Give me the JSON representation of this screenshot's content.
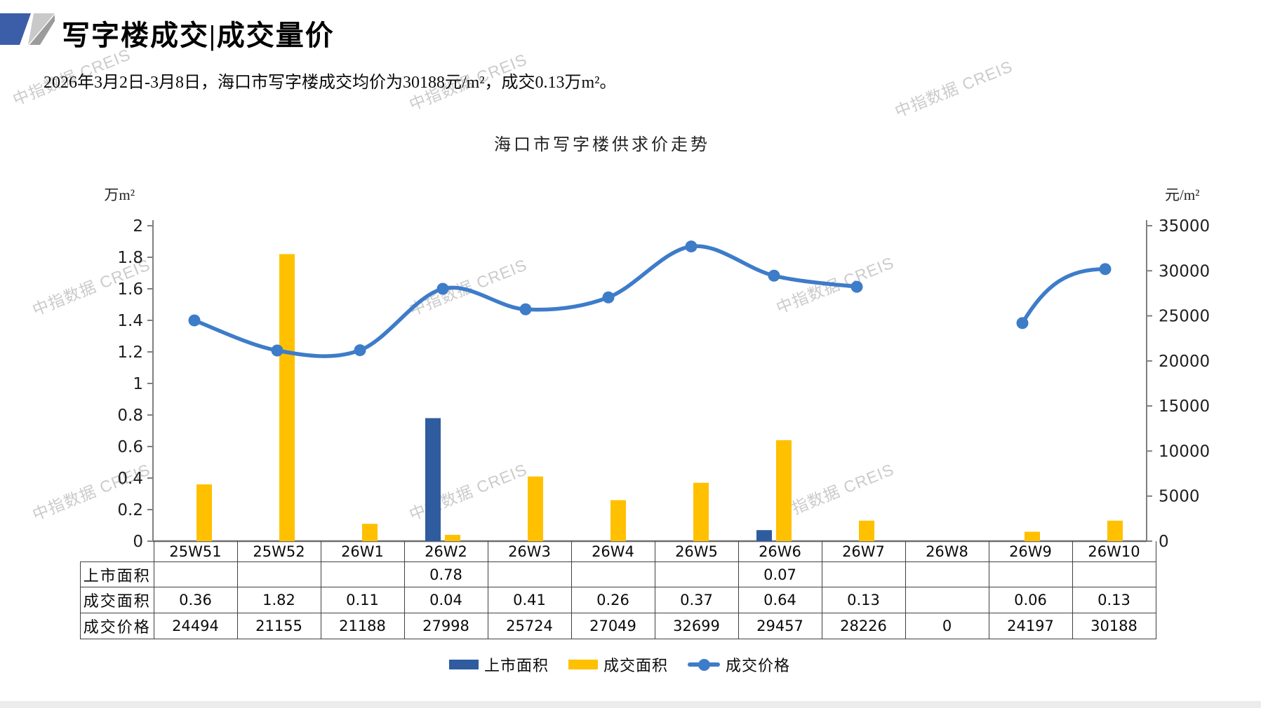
{
  "header": {
    "title": "写字楼成交|成交量价",
    "subtitle": "2026年3月2日-3月8日，海口市写字楼成交均价为30188元/m²，成交0.13万m²。"
  },
  "watermark": {
    "text": "中指数据 CREIS"
  },
  "chart_data": {
    "type": "bar+line",
    "title": "海口市写字楼供求价走势",
    "categories": [
      "25W51",
      "25W52",
      "26W1",
      "26W2",
      "26W3",
      "26W4",
      "26W5",
      "26W6",
      "26W7",
      "26W8",
      "26W9",
      "26W10"
    ],
    "series": [
      {
        "name": "上市面积",
        "type": "bar",
        "yaxis": "left",
        "color": "#2F5B9F",
        "values": [
          null,
          null,
          null,
          0.78,
          null,
          null,
          null,
          0.07,
          null,
          null,
          null,
          null
        ]
      },
      {
        "name": "成交面积",
        "type": "bar",
        "yaxis": "left",
        "color": "#FFC000",
        "values": [
          0.36,
          1.82,
          0.11,
          0.04,
          0.41,
          0.26,
          0.37,
          0.64,
          0.13,
          null,
          0.06,
          0.13
        ]
      },
      {
        "name": "成交价格",
        "type": "line",
        "yaxis": "right",
        "color": "#3D7CC9",
        "gap_at_zero": true,
        "values": [
          24494,
          21155,
          21188,
          27998,
          25724,
          27049,
          32699,
          29457,
          28226,
          0,
          24197,
          30188
        ]
      }
    ],
    "left_axis": {
      "unit": "万m²",
      "min": 0,
      "max": 2,
      "step": 0.2,
      "ticks": [
        "2",
        "1.8",
        "1.6",
        "1.4",
        "1.2",
        "1",
        "0.8",
        "0.6",
        "0.4",
        "0.2",
        "0"
      ]
    },
    "right_axis": {
      "unit": "元/m²",
      "min": 0,
      "max": 35000,
      "step": 5000,
      "ticks": [
        "35000",
        "30000",
        "25000",
        "20000",
        "15000",
        "10000",
        "5000",
        "0"
      ]
    },
    "legend_position": "bottom",
    "grid": false
  },
  "table": {
    "row_labels": [
      "上市面积",
      "成交面积",
      "成交价格"
    ]
  },
  "legend": {
    "items": [
      "上市面积",
      "成交面积",
      "成交价格"
    ]
  }
}
